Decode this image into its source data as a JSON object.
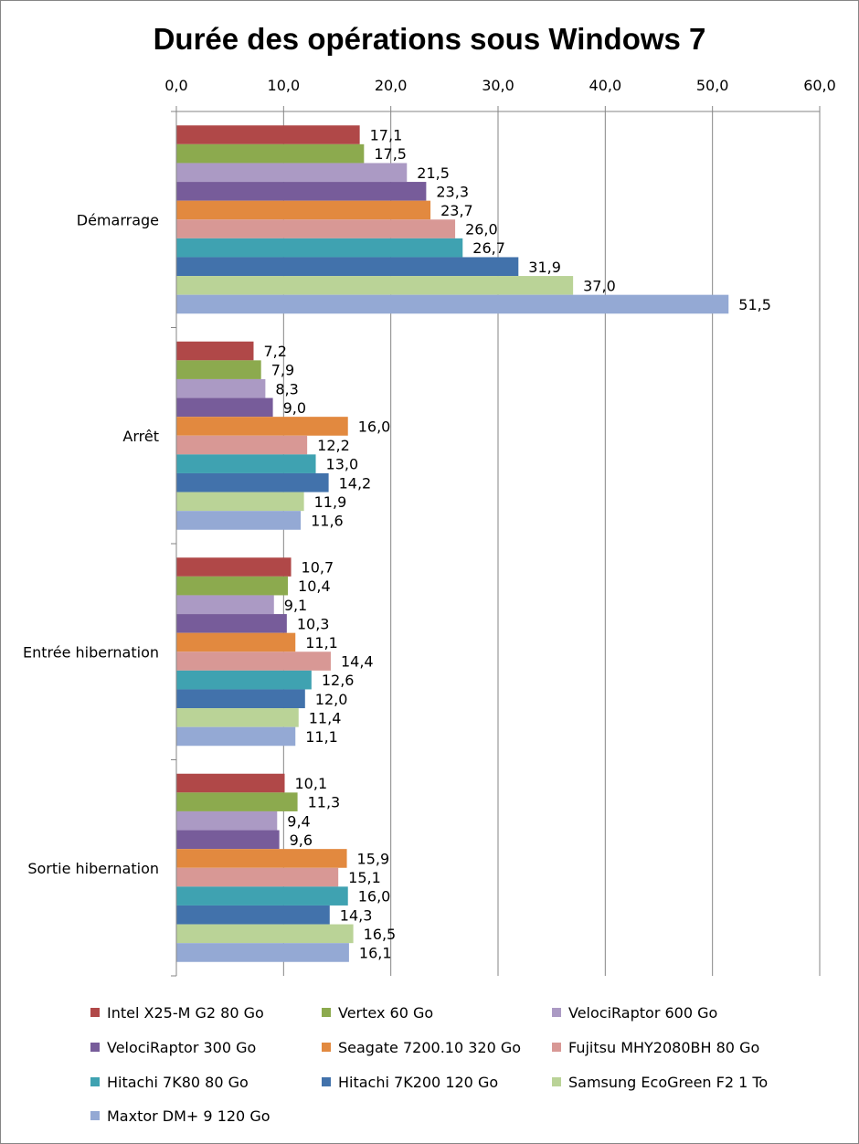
{
  "chart_data": {
    "type": "bar",
    "orientation": "horizontal",
    "title": "Durée des opérations sous Windows 7",
    "xlim": [
      0,
      60
    ],
    "x_ticks": [
      "0,0",
      "10,0",
      "20,0",
      "30,0",
      "40,0",
      "50,0",
      "60,0"
    ],
    "x_axis_position": "top",
    "grid": true,
    "legend_position": "bottom",
    "categories": [
      "Démarrage",
      "Arrêt",
      "Entrée hibernation",
      "Sortie hibernation"
    ],
    "series": [
      {
        "name": "Intel X25-M G2 80 Go",
        "color": "#b04848",
        "values": [
          17.1,
          7.2,
          10.7,
          10.1
        ],
        "labels": [
          "17,1",
          "7,2",
          "10,7",
          "10,1"
        ]
      },
      {
        "name": "Vertex 60 Go",
        "color": "#8caa4e",
        "values": [
          17.5,
          7.9,
          10.4,
          11.3
        ],
        "labels": [
          "17,5",
          "7,9",
          "10,4",
          "11,3"
        ]
      },
      {
        "name": "VelociRaptor 600 Go",
        "color": "#ab9ac4",
        "values": [
          21.5,
          8.3,
          9.1,
          9.4
        ],
        "labels": [
          "21,5",
          "8,3",
          "9,1",
          "9,4"
        ]
      },
      {
        "name": "VelociRaptor 300 Go",
        "color": "#775c9a",
        "values": [
          23.3,
          9.0,
          10.3,
          9.6
        ],
        "labels": [
          "23,3",
          "9,0",
          "10,3",
          "9,6"
        ]
      },
      {
        "name": "Seagate 7200.10 320 Go",
        "color": "#e2893f",
        "values": [
          23.7,
          16.0,
          11.1,
          15.9
        ],
        "labels": [
          "23,7",
          "16,0",
          "11,1",
          "15,9"
        ]
      },
      {
        "name": "Fujitsu MHY2080BH 80 Go",
        "color": "#d89895",
        "values": [
          26.0,
          12.2,
          14.4,
          15.1
        ],
        "labels": [
          "26,0",
          "12,2",
          "14,4",
          "15,1"
        ]
      },
      {
        "name": "Hitachi 7K80 80 Go",
        "color": "#3fa2b1",
        "values": [
          26.7,
          13.0,
          12.6,
          16.0
        ],
        "labels": [
          "26,7",
          "13,0",
          "12,6",
          "16,0"
        ]
      },
      {
        "name": "Hitachi 7K200 120 Go",
        "color": "#4272ab",
        "values": [
          31.9,
          14.2,
          12.0,
          14.3
        ],
        "labels": [
          "31,9",
          "14,2",
          "12,0",
          "14,3"
        ]
      },
      {
        "name": "Samsung EcoGreen F2 1 To",
        "color": "#bad397",
        "values": [
          37.0,
          11.9,
          11.4,
          16.5
        ],
        "labels": [
          "37,0",
          "11,9",
          "11,4",
          "16,5"
        ]
      },
      {
        "name": "Maxtor DM+ 9 120 Go",
        "color": "#94a9d4",
        "values": [
          51.5,
          11.6,
          11.1,
          16.1
        ],
        "labels": [
          "51,5",
          "11,6",
          "11,1",
          "16,1"
        ]
      }
    ]
  }
}
